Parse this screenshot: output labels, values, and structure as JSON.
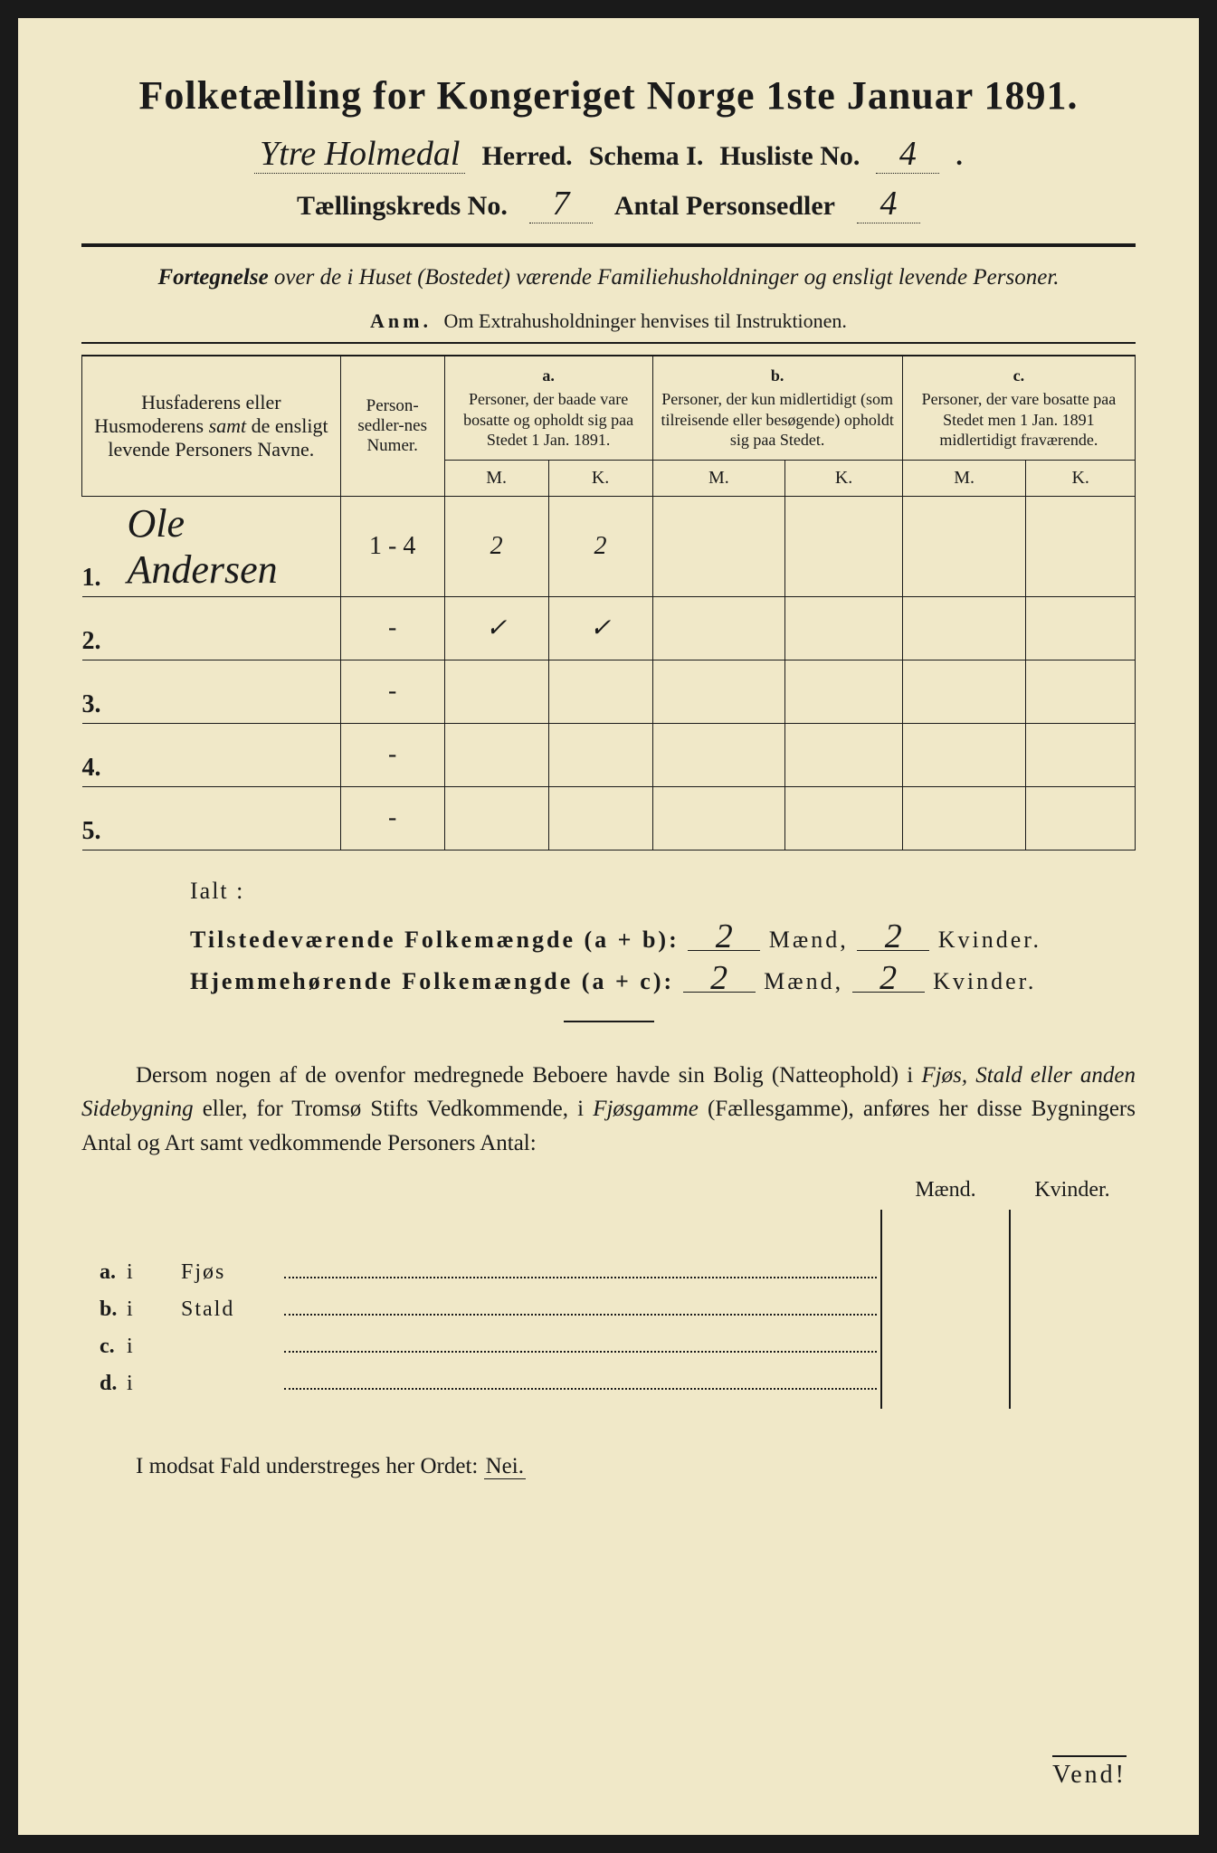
{
  "header": {
    "main_title": "Folketælling for Kongeriget Norge 1ste Januar 1891.",
    "herred_value": "Ytre Holmedal",
    "herred_label": "Herred.",
    "schema_label": "Schema I.",
    "husliste_label": "Husliste No.",
    "husliste_value": "4",
    "kreds_label": "Tællingskreds No.",
    "kreds_value": "7",
    "antal_label": "Antal Personsedler",
    "antal_value": "4"
  },
  "subtitle": {
    "line": "Fortegnelse over de i Huset (Bostedet) værende Familiehusholdninger og ensligt levende Personer.",
    "lead_word": "Fortegnelse",
    "rest": " over de i Huset (Bostedet) værende Familiehusholdninger og ensligt levende Personer.",
    "anm_label": "Anm.",
    "anm_text": "Om Extrahusholdninger henvises til Instruktionen."
  },
  "table_headers": {
    "names": "Husfaderens eller Husmoderens samt de ensligt levende Personers Navne.",
    "names_part1": "Husfaderens eller Husmoderens ",
    "names_italic": "samt",
    "names_part2": " de ensligt levende Personers Navne.",
    "nummer": "Person-sedler-nes Numer.",
    "a_letter": "a.",
    "a_text": "Personer, der baade vare bosatte og opholdt sig paa Stedet 1 Jan. 1891.",
    "b_letter": "b.",
    "b_text": "Personer, der kun midlertidigt (som tilreisende eller besøgende) opholdt sig paa Stedet.",
    "c_letter": "c.",
    "c_text": "Personer, der vare bosatte paa Stedet men 1 Jan. 1891 midlertidigt fraværende.",
    "M": "M.",
    "K": "K."
  },
  "rows": [
    {
      "num": "1.",
      "name": "Ole Andersen",
      "nummer": "1 - 4",
      "aM": "2",
      "aK": "2",
      "bM": "",
      "bK": "",
      "cM": "",
      "cK": ""
    },
    {
      "num": "2.",
      "name": "",
      "nummer": "-",
      "aM": "✓",
      "aK": "✓",
      "bM": "",
      "bK": "",
      "cM": "",
      "cK": ""
    },
    {
      "num": "3.",
      "name": "",
      "nummer": "-",
      "aM": "",
      "aK": "",
      "bM": "",
      "bK": "",
      "cM": "",
      "cK": ""
    },
    {
      "num": "4.",
      "name": "",
      "nummer": "-",
      "aM": "",
      "aK": "",
      "bM": "",
      "bK": "",
      "cM": "",
      "cK": ""
    },
    {
      "num": "5.",
      "name": "",
      "nummer": "-",
      "aM": "",
      "aK": "",
      "bM": "",
      "bK": "",
      "cM": "",
      "cK": ""
    }
  ],
  "totals": {
    "ialt": "Ialt :",
    "tilstede_label": "Tilstedeværende Folkemængde (a + b):",
    "hjemme_label": "Hjemmehørende Folkemængde (a + c):",
    "maend_label": "Mænd,",
    "kvinder_label": "Kvinder.",
    "tilstede_m": "2",
    "tilstede_k": "2",
    "hjemme_m": "2",
    "hjemme_k": "2"
  },
  "dersom": {
    "text_part1": "Dersom nogen af de ovenfor medregnede Beboere havde sin Bolig (Natteophold) i ",
    "italic1": "Fjøs, Stald eller anden Sidebygning",
    "text_part2": " eller, for Tromsø Stifts Vedkommende, i ",
    "italic2": "Fjøsgamme",
    "text_part3": " (Fællesgamme), anføres her disse Bygningers Antal og Art samt vedkommende Personers Antal:"
  },
  "buildings": {
    "maend_header": "Mænd.",
    "kvinder_header": "Kvinder.",
    "items": [
      {
        "letter": "a.",
        "i": "i",
        "type": "Fjøs"
      },
      {
        "letter": "b.",
        "i": "i",
        "type": "Stald"
      },
      {
        "letter": "c.",
        "i": "i",
        "type": ""
      },
      {
        "letter": "d.",
        "i": "i",
        "type": ""
      }
    ]
  },
  "modsat": {
    "text": "I modsat Fald understreges her Ordet: ",
    "nei": "Nei."
  },
  "footer": {
    "vend": "Vend!"
  },
  "colors": {
    "page_bg": "#f0e8c8",
    "ink": "#1a1a1a",
    "outer_bg": "#1a1a1a"
  }
}
